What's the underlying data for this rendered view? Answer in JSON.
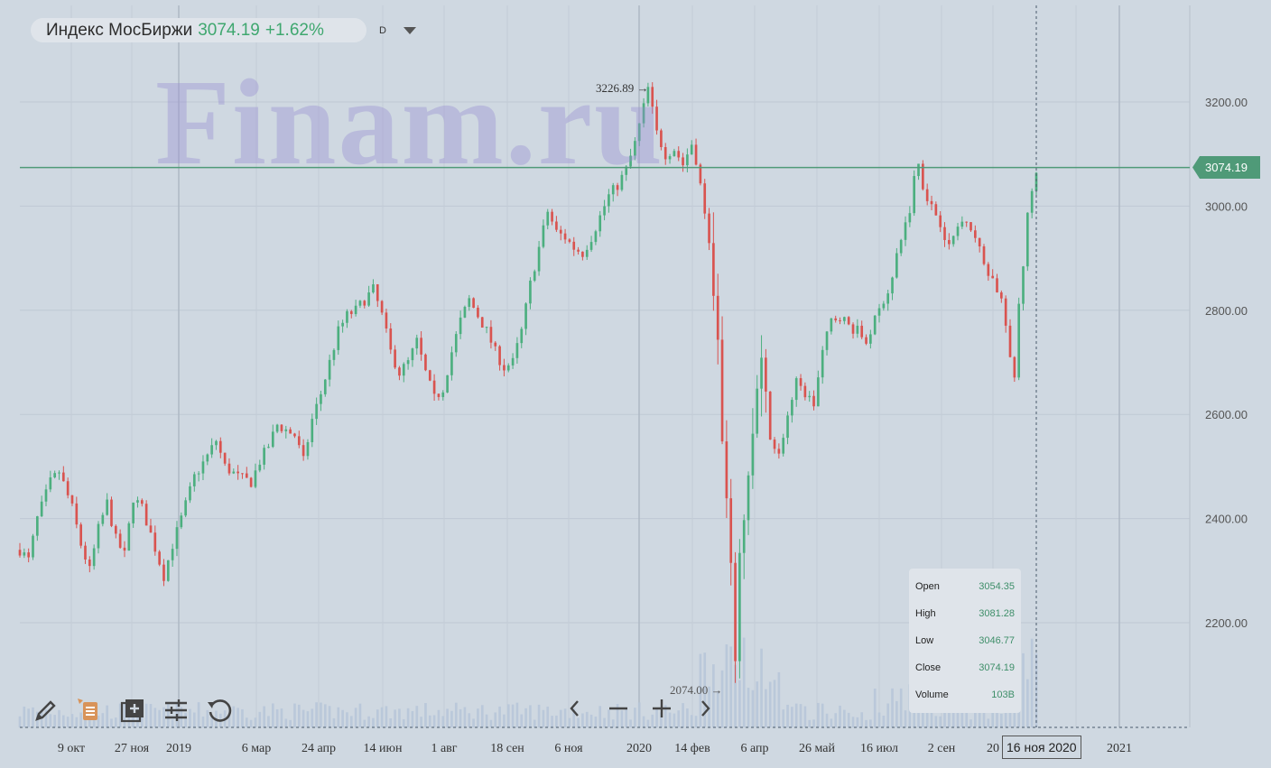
{
  "header": {
    "instrument": "Индекс МосБиржи",
    "price": "3074.19",
    "change": "+1.62%",
    "interval": "D"
  },
  "watermark": "Finam.ru",
  "price_badge": "3074.19",
  "hover_date": "16 ноя 2020",
  "tooltip": {
    "rows": [
      {
        "key": "Open",
        "value": "3054.35"
      },
      {
        "key": "High",
        "value": "3081.28"
      },
      {
        "key": "Low",
        "value": "3046.77"
      },
      {
        "key": "Close",
        "value": "3074.19"
      },
      {
        "key": "Volume",
        "value": "103B"
      }
    ]
  },
  "toolbar": {
    "icons": [
      "pencil-icon",
      "notes-icon",
      "add-indicator-icon",
      "settings-sliders-icon",
      "reset-icon"
    ],
    "nav": [
      "arrow-left-icon",
      "zoom-out-icon",
      "zoom-in-icon",
      "arrow-right-icon"
    ]
  },
  "colors": {
    "background": "#cfd8e1",
    "up": "#4caf7f",
    "down": "#d9534f",
    "price_line": "#4f9a78",
    "volume": "#b6c6d8"
  },
  "chart_data": {
    "type": "candlestick",
    "title": "Индекс МосБиржи",
    "ylim": [
      1990,
      3340
    ],
    "y_ticks": [
      "3200.00",
      "3000.00",
      "2800.00",
      "2600.00",
      "2400.00",
      "2200.00"
    ],
    "y_tick_values": [
      3200,
      3000,
      2800,
      2600,
      2400,
      2200
    ],
    "x_ticks": [
      "9 окт",
      "27 ноя",
      "2019",
      "6 мар",
      "24 апр",
      "14 июн",
      "1 авг",
      "18 сен",
      "6 ноя",
      "2020",
      "14 фев",
      "6 апр",
      "26 май",
      "16 июл",
      "2 сен",
      "20",
      "к",
      "2021"
    ],
    "current_price": 3074.19,
    "annotations": [
      {
        "label": "3226.89",
        "value": 3226.89,
        "kind": "max"
      },
      {
        "label": "2074.00",
        "value": 2074.0,
        "kind": "min"
      }
    ],
    "close_path": [
      [
        0,
        2340
      ],
      [
        2,
        2320
      ],
      [
        4,
        2400
      ],
      [
        7,
        2470
      ],
      [
        9,
        2490
      ],
      [
        12,
        2420
      ],
      [
        14,
        2350
      ],
      [
        16,
        2300
      ],
      [
        18,
        2380
      ],
      [
        20,
        2430
      ],
      [
        22,
        2360
      ],
      [
        24,
        2330
      ],
      [
        26,
        2440
      ],
      [
        28,
        2420
      ],
      [
        30,
        2370
      ],
      [
        33,
        2290
      ],
      [
        35,
        2350
      ],
      [
        37,
        2400
      ],
      [
        40,
        2480
      ],
      [
        43,
        2520
      ],
      [
        45,
        2550
      ],
      [
        47,
        2500
      ],
      [
        50,
        2480
      ],
      [
        53,
        2470
      ],
      [
        55,
        2510
      ],
      [
        57,
        2540
      ],
      [
        59,
        2580
      ],
      [
        61,
        2570
      ],
      [
        63,
        2560
      ],
      [
        65,
        2510
      ],
      [
        67,
        2590
      ],
      [
        69,
        2640
      ],
      [
        71,
        2700
      ],
      [
        73,
        2760
      ],
      [
        75,
        2790
      ],
      [
        77,
        2800
      ],
      [
        79,
        2820
      ],
      [
        81,
        2840
      ],
      [
        83,
        2790
      ],
      [
        85,
        2720
      ],
      [
        87,
        2680
      ],
      [
        89,
        2700
      ],
      [
        91,
        2740
      ],
      [
        93,
        2680
      ],
      [
        95,
        2630
      ],
      [
        97,
        2650
      ],
      [
        99,
        2720
      ],
      [
        101,
        2780
      ],
      [
        103,
        2820
      ],
      [
        105,
        2790
      ],
      [
        107,
        2760
      ],
      [
        109,
        2720
      ],
      [
        111,
        2690
      ],
      [
        113,
        2700
      ],
      [
        115,
        2760
      ],
      [
        117,
        2850
      ],
      [
        119,
        2920
      ],
      [
        121,
        2990
      ],
      [
        123,
        2950
      ],
      [
        125,
        2940
      ],
      [
        127,
        2920
      ],
      [
        129,
        2910
      ],
      [
        131,
        2940
      ],
      [
        133,
        2980
      ],
      [
        135,
        3020
      ],
      [
        137,
        3040
      ],
      [
        139,
        3070
      ],
      [
        141,
        3120
      ],
      [
        143,
        3190
      ],
      [
        144,
        3226
      ],
      [
        146,
        3140
      ],
      [
        148,
        3100
      ],
      [
        150,
        3110
      ],
      [
        152,
        3080
      ],
      [
        154,
        3120
      ],
      [
        155,
        3090
      ],
      [
        157,
        2990
      ],
      [
        158,
        2920
      ],
      [
        159,
        2860
      ],
      [
        160,
        2720
      ],
      [
        161,
        2540
      ],
      [
        162,
        2420
      ],
      [
        163,
        2280
      ],
      [
        164,
        2150
      ],
      [
        165,
        2300
      ],
      [
        166,
        2420
      ],
      [
        167,
        2480
      ],
      [
        168,
        2560
      ],
      [
        169,
        2640
      ],
      [
        170,
        2680
      ],
      [
        172,
        2560
      ],
      [
        174,
        2520
      ],
      [
        176,
        2600
      ],
      [
        178,
        2660
      ],
      [
        180,
        2640
      ],
      [
        182,
        2620
      ],
      [
        184,
        2720
      ],
      [
        186,
        2780
      ],
      [
        188,
        2790
      ],
      [
        190,
        2770
      ],
      [
        192,
        2760
      ],
      [
        194,
        2740
      ],
      [
        196,
        2780
      ],
      [
        198,
        2820
      ],
      [
        200,
        2860
      ],
      [
        202,
        2940
      ],
      [
        204,
        2990
      ],
      [
        205,
        3060
      ],
      [
        206,
        3080
      ],
      [
        207,
        3040
      ],
      [
        209,
        3000
      ],
      [
        211,
        2970
      ],
      [
        213,
        2920
      ],
      [
        215,
        2960
      ],
      [
        217,
        2980
      ],
      [
        219,
        2940
      ],
      [
        221,
        2890
      ],
      [
        223,
        2860
      ],
      [
        225,
        2820
      ],
      [
        226,
        2770
      ],
      [
        227,
        2700
      ],
      [
        228,
        2670
      ],
      [
        229,
        2810
      ],
      [
        230,
        2890
      ],
      [
        231,
        2980
      ],
      [
        232,
        3030
      ],
      [
        233,
        3074
      ]
    ],
    "n_candles": 234
  }
}
